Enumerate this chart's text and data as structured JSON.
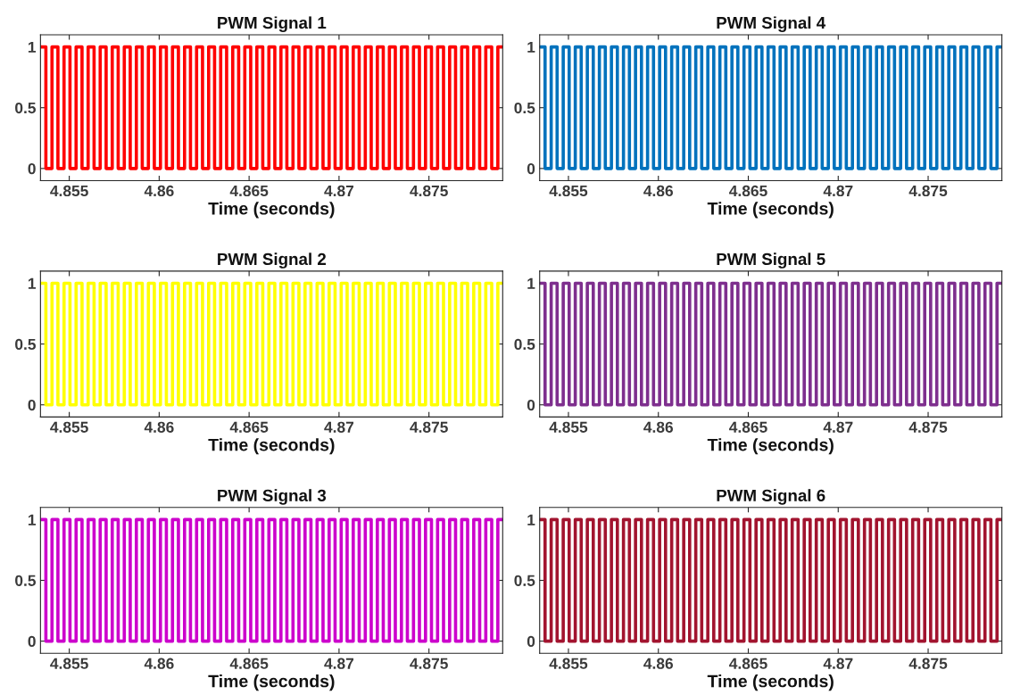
{
  "chart_data": [
    {
      "type": "step",
      "title": "PWM Signal 1",
      "xlabel": "Time (seconds)",
      "xlim": [
        4.8534,
        4.8791
      ],
      "xticks": [
        4.855,
        4.86,
        4.865,
        4.87,
        4.875
      ],
      "ylim": [
        -0.1,
        1.1
      ],
      "yticks": [
        0,
        0.5,
        1
      ],
      "grid": false,
      "x": [
        4.8534,
        4.8537,
        4.85404,
        4.85437,
        4.85471,
        4.85504,
        4.85538,
        4.85571,
        4.85605,
        4.85638,
        4.85672,
        4.85705,
        4.85739,
        4.85772,
        4.85806,
        4.85839,
        4.85873,
        4.85906,
        4.8594,
        4.85973,
        4.86007,
        4.8604,
        4.86074,
        4.86107,
        4.86141,
        4.86174,
        4.86208,
        4.86241,
        4.86275,
        4.86308,
        4.86342,
        4.86375,
        4.86409,
        4.86442,
        4.86476,
        4.86509,
        4.86543,
        4.86576,
        4.8661,
        4.86643,
        4.86677,
        4.8671,
        4.86744,
        4.86777,
        4.86811,
        4.86844,
        4.86878,
        4.86911,
        4.86945,
        4.86978,
        4.87012,
        4.87045,
        4.87079,
        4.87112,
        4.87146,
        4.87179,
        4.87213,
        4.87246,
        4.8728,
        4.87313,
        4.87347,
        4.8738,
        4.87414,
        4.87447,
        4.87481,
        4.87514,
        4.87548,
        4.87581,
        4.87615,
        4.87648,
        4.87682,
        4.87715,
        4.87749,
        4.87782,
        4.87816,
        4.87849,
        4.87883,
        4.8791
      ],
      "series": [
        {
          "color": "#ff0000",
          "values": [
            1,
            0,
            1,
            0,
            1,
            0,
            1,
            0,
            1,
            0,
            1,
            0,
            1,
            0,
            1,
            0,
            1,
            0,
            1,
            0,
            1,
            0,
            1,
            0,
            1,
            0,
            1,
            0,
            1,
            0,
            1,
            0,
            1,
            0,
            1,
            0,
            1,
            0,
            1,
            0,
            1,
            0,
            1,
            0,
            1,
            0,
            1,
            0,
            1,
            0,
            1,
            0,
            1,
            0,
            1,
            0,
            1,
            0,
            1,
            0,
            1,
            0,
            1,
            0,
            1,
            0,
            1,
            0,
            1,
            0,
            1,
            0,
            1,
            0,
            1,
            0,
            1,
            1
          ]
        }
      ]
    },
    {
      "type": "step",
      "title": "PWM Signal 4",
      "xlabel": "Time (seconds)",
      "xlim": [
        4.8534,
        4.8791
      ],
      "xticks": [
        4.855,
        4.86,
        4.865,
        4.87,
        4.875
      ],
      "ylim": [
        -0.1,
        1.1
      ],
      "yticks": [
        0,
        0.5,
        1
      ],
      "grid": false,
      "x": [
        4.8534,
        4.8537,
        4.85404,
        4.85437,
        4.85471,
        4.85504,
        4.85538,
        4.85571,
        4.85605,
        4.85638,
        4.85672,
        4.85705,
        4.85739,
        4.85772,
        4.85806,
        4.85839,
        4.85873,
        4.85906,
        4.8594,
        4.85973,
        4.86007,
        4.8604,
        4.86074,
        4.86107,
        4.86141,
        4.86174,
        4.86208,
        4.86241,
        4.86275,
        4.86308,
        4.86342,
        4.86375,
        4.86409,
        4.86442,
        4.86476,
        4.86509,
        4.86543,
        4.86576,
        4.8661,
        4.86643,
        4.86677,
        4.8671,
        4.86744,
        4.86777,
        4.86811,
        4.86844,
        4.86878,
        4.86911,
        4.86945,
        4.86978,
        4.87012,
        4.87045,
        4.87079,
        4.87112,
        4.87146,
        4.87179,
        4.87213,
        4.87246,
        4.8728,
        4.87313,
        4.87347,
        4.8738,
        4.87414,
        4.87447,
        4.87481,
        4.87514,
        4.87548,
        4.87581,
        4.87615,
        4.87648,
        4.87682,
        4.87715,
        4.87749,
        4.87782,
        4.87816,
        4.87849,
        4.87883,
        4.8791
      ],
      "series": [
        {
          "color": "#0072bd",
          "values": [
            1,
            0,
            1,
            0,
            1,
            0,
            1,
            0,
            1,
            0,
            1,
            0,
            1,
            0,
            1,
            0,
            1,
            0,
            1,
            0,
            1,
            0,
            1,
            0,
            1,
            0,
            1,
            0,
            1,
            0,
            1,
            0,
            1,
            0,
            1,
            0,
            1,
            0,
            1,
            0,
            1,
            0,
            1,
            0,
            1,
            0,
            1,
            0,
            1,
            0,
            1,
            0,
            1,
            0,
            1,
            0,
            1,
            0,
            1,
            0,
            1,
            0,
            1,
            0,
            1,
            0,
            1,
            0,
            1,
            0,
            1,
            0,
            1,
            0,
            1,
            0,
            1,
            1
          ]
        }
      ]
    },
    {
      "type": "step",
      "title": "PWM Signal 2",
      "xlabel": "Time (seconds)",
      "xlim": [
        4.8534,
        4.8791
      ],
      "xticks": [
        4.855,
        4.86,
        4.865,
        4.87,
        4.875
      ],
      "ylim": [
        -0.1,
        1.1
      ],
      "yticks": [
        0,
        0.5,
        1
      ],
      "grid": false,
      "x": [
        4.8534,
        4.8537,
        4.85404,
        4.85437,
        4.85471,
        4.85504,
        4.85538,
        4.85571,
        4.85605,
        4.85638,
        4.85672,
        4.85705,
        4.85739,
        4.85772,
        4.85806,
        4.85839,
        4.85873,
        4.85906,
        4.8594,
        4.85973,
        4.86007,
        4.8604,
        4.86074,
        4.86107,
        4.86141,
        4.86174,
        4.86208,
        4.86241,
        4.86275,
        4.86308,
        4.86342,
        4.86375,
        4.86409,
        4.86442,
        4.86476,
        4.86509,
        4.86543,
        4.86576,
        4.8661,
        4.86643,
        4.86677,
        4.8671,
        4.86744,
        4.86777,
        4.86811,
        4.86844,
        4.86878,
        4.86911,
        4.86945,
        4.86978,
        4.87012,
        4.87045,
        4.87079,
        4.87112,
        4.87146,
        4.87179,
        4.87213,
        4.87246,
        4.8728,
        4.87313,
        4.87347,
        4.8738,
        4.87414,
        4.87447,
        4.87481,
        4.87514,
        4.87548,
        4.87581,
        4.87615,
        4.87648,
        4.87682,
        4.87715,
        4.87749,
        4.87782,
        4.87816,
        4.87849,
        4.87883,
        4.8791
      ],
      "series": [
        {
          "color": "#ffff00",
          "values": [
            1,
            0,
            1,
            0,
            1,
            0,
            1,
            0,
            1,
            0,
            1,
            0,
            1,
            0,
            1,
            0,
            1,
            0,
            1,
            0,
            1,
            0,
            1,
            0,
            1,
            0,
            1,
            0,
            1,
            0,
            1,
            0,
            1,
            0,
            1,
            0,
            1,
            0,
            1,
            0,
            1,
            0,
            1,
            0,
            1,
            0,
            1,
            0,
            1,
            0,
            1,
            0,
            1,
            0,
            1,
            0,
            1,
            0,
            1,
            0,
            1,
            0,
            1,
            0,
            1,
            0,
            1,
            0,
            1,
            0,
            1,
            0,
            1,
            0,
            1,
            0,
            1,
            1
          ]
        }
      ]
    },
    {
      "type": "step",
      "title": "PWM Signal 5",
      "xlabel": "Time (seconds)",
      "xlim": [
        4.8534,
        4.8791
      ],
      "xticks": [
        4.855,
        4.86,
        4.865,
        4.87,
        4.875
      ],
      "ylim": [
        -0.1,
        1.1
      ],
      "yticks": [
        0,
        0.5,
        1
      ],
      "grid": false,
      "x": [
        4.8534,
        4.8537,
        4.85404,
        4.85437,
        4.85471,
        4.85504,
        4.85538,
        4.85571,
        4.85605,
        4.85638,
        4.85672,
        4.85705,
        4.85739,
        4.85772,
        4.85806,
        4.85839,
        4.85873,
        4.85906,
        4.8594,
        4.85973,
        4.86007,
        4.8604,
        4.86074,
        4.86107,
        4.86141,
        4.86174,
        4.86208,
        4.86241,
        4.86275,
        4.86308,
        4.86342,
        4.86375,
        4.86409,
        4.86442,
        4.86476,
        4.86509,
        4.86543,
        4.86576,
        4.8661,
        4.86643,
        4.86677,
        4.8671,
        4.86744,
        4.86777,
        4.86811,
        4.86844,
        4.86878,
        4.86911,
        4.86945,
        4.86978,
        4.87012,
        4.87045,
        4.87079,
        4.87112,
        4.87146,
        4.87179,
        4.87213,
        4.87246,
        4.8728,
        4.87313,
        4.87347,
        4.8738,
        4.87414,
        4.87447,
        4.87481,
        4.87514,
        4.87548,
        4.87581,
        4.87615,
        4.87648,
        4.87682,
        4.87715,
        4.87749,
        4.87782,
        4.87816,
        4.87849,
        4.87883,
        4.8791
      ],
      "series": [
        {
          "color": "#7e2f8e",
          "values": [
            1,
            0,
            1,
            0,
            1,
            0,
            1,
            0,
            1,
            0,
            1,
            0,
            1,
            0,
            1,
            0,
            1,
            0,
            1,
            0,
            1,
            0,
            1,
            0,
            1,
            0,
            1,
            0,
            1,
            0,
            1,
            0,
            1,
            0,
            1,
            0,
            1,
            0,
            1,
            0,
            1,
            0,
            1,
            0,
            1,
            0,
            1,
            0,
            1,
            0,
            1,
            0,
            1,
            0,
            1,
            0,
            1,
            0,
            1,
            0,
            1,
            0,
            1,
            0,
            1,
            0,
            1,
            0,
            1,
            0,
            1,
            0,
            1,
            0,
            1,
            0,
            1,
            1
          ]
        }
      ]
    },
    {
      "type": "step",
      "title": "PWM Signal 3",
      "xlabel": "Time (seconds)",
      "xlim": [
        4.8534,
        4.8791
      ],
      "xticks": [
        4.855,
        4.86,
        4.865,
        4.87,
        4.875
      ],
      "ylim": [
        -0.1,
        1.1
      ],
      "yticks": [
        0,
        0.5,
        1
      ],
      "grid": false,
      "x": [
        4.8534,
        4.8537,
        4.85404,
        4.85437,
        4.85471,
        4.85504,
        4.85538,
        4.85571,
        4.85605,
        4.85638,
        4.85672,
        4.85705,
        4.85739,
        4.85772,
        4.85806,
        4.85839,
        4.85873,
        4.85906,
        4.8594,
        4.85973,
        4.86007,
        4.8604,
        4.86074,
        4.86107,
        4.86141,
        4.86174,
        4.86208,
        4.86241,
        4.86275,
        4.86308,
        4.86342,
        4.86375,
        4.86409,
        4.86442,
        4.86476,
        4.86509,
        4.86543,
        4.86576,
        4.8661,
        4.86643,
        4.86677,
        4.8671,
        4.86744,
        4.86777,
        4.86811,
        4.86844,
        4.86878,
        4.86911,
        4.86945,
        4.86978,
        4.87012,
        4.87045,
        4.87079,
        4.87112,
        4.87146,
        4.87179,
        4.87213,
        4.87246,
        4.8728,
        4.87313,
        4.87347,
        4.8738,
        4.87414,
        4.87447,
        4.87481,
        4.87514,
        4.87548,
        4.87581,
        4.87615,
        4.87648,
        4.87682,
        4.87715,
        4.87749,
        4.87782,
        4.87816,
        4.87849,
        4.87883,
        4.8791
      ],
      "series": [
        {
          "color": "#cc00cc",
          "values": [
            1,
            0,
            1,
            0,
            1,
            0,
            1,
            0,
            1,
            0,
            1,
            0,
            1,
            0,
            1,
            0,
            1,
            0,
            1,
            0,
            1,
            0,
            1,
            0,
            1,
            0,
            1,
            0,
            1,
            0,
            1,
            0,
            1,
            0,
            1,
            0,
            1,
            0,
            1,
            0,
            1,
            0,
            1,
            0,
            1,
            0,
            1,
            0,
            1,
            0,
            1,
            0,
            1,
            0,
            1,
            0,
            1,
            0,
            1,
            0,
            1,
            0,
            1,
            0,
            1,
            0,
            1,
            0,
            1,
            0,
            1,
            0,
            1,
            0,
            1,
            0,
            1,
            1
          ]
        }
      ]
    },
    {
      "type": "step",
      "title": "PWM Signal 6",
      "xlabel": "Time (seconds)",
      "xlim": [
        4.8534,
        4.8791
      ],
      "xticks": [
        4.855,
        4.86,
        4.865,
        4.87,
        4.875
      ],
      "ylim": [
        -0.1,
        1.1
      ],
      "yticks": [
        0,
        0.5,
        1
      ],
      "grid": false,
      "x": [
        4.8534,
        4.8537,
        4.85404,
        4.85437,
        4.85471,
        4.85504,
        4.85538,
        4.85571,
        4.85605,
        4.85638,
        4.85672,
        4.85705,
        4.85739,
        4.85772,
        4.85806,
        4.85839,
        4.85873,
        4.85906,
        4.8594,
        4.85973,
        4.86007,
        4.8604,
        4.86074,
        4.86107,
        4.86141,
        4.86174,
        4.86208,
        4.86241,
        4.86275,
        4.86308,
        4.86342,
        4.86375,
        4.86409,
        4.86442,
        4.86476,
        4.86509,
        4.86543,
        4.86576,
        4.8661,
        4.86643,
        4.86677,
        4.8671,
        4.86744,
        4.86777,
        4.86811,
        4.86844,
        4.86878,
        4.86911,
        4.86945,
        4.86978,
        4.87012,
        4.87045,
        4.87079,
        4.87112,
        4.87146,
        4.87179,
        4.87213,
        4.87246,
        4.8728,
        4.87313,
        4.87347,
        4.8738,
        4.87414,
        4.87447,
        4.87481,
        4.87514,
        4.87548,
        4.87581,
        4.87615,
        4.87648,
        4.87682,
        4.87715,
        4.87749,
        4.87782,
        4.87816,
        4.87849,
        4.87883,
        4.8791
      ],
      "series": [
        {
          "color": "#a2142f",
          "values": [
            1,
            0,
            1,
            0,
            1,
            0,
            1,
            0,
            1,
            0,
            1,
            0,
            1,
            0,
            1,
            0,
            1,
            0,
            1,
            0,
            1,
            0,
            1,
            0,
            1,
            0,
            1,
            0,
            1,
            0,
            1,
            0,
            1,
            0,
            1,
            0,
            1,
            0,
            1,
            0,
            1,
            0,
            1,
            0,
            1,
            0,
            1,
            0,
            1,
            0,
            1,
            0,
            1,
            0,
            1,
            0,
            1,
            0,
            1,
            0,
            1,
            0,
            1,
            0,
            1,
            0,
            1,
            0,
            1,
            0,
            1,
            0,
            1,
            0,
            1,
            0,
            1,
            1
          ]
        }
      ]
    }
  ]
}
